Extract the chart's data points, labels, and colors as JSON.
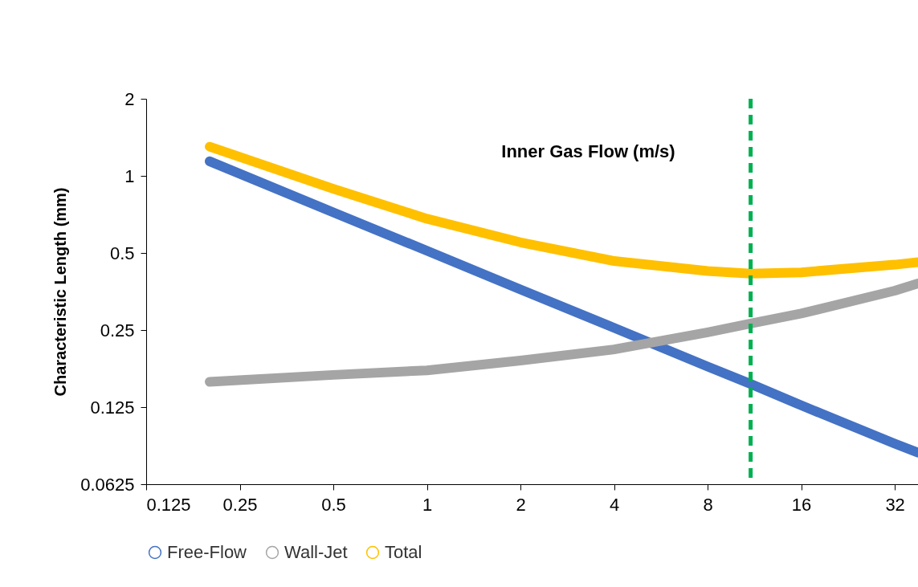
{
  "chart_data": {
    "type": "line",
    "xlabel": "Inner Gas Flow (m/s)",
    "ylabel": "Characteristic Length (mm)",
    "x": [
      0.2,
      0.5,
      1,
      2,
      4,
      8,
      11,
      16,
      32,
      38
    ],
    "series": [
      {
        "name": "Free-Flow",
        "color": "#4472c4",
        "values": [
          1.14,
          0.72,
          0.51,
          0.36,
          0.255,
          0.18,
          0.154,
          0.127,
          0.09,
          0.083
        ]
      },
      {
        "name": "Wall-Jet",
        "color": "#a5a5a5",
        "values": [
          0.157,
          0.167,
          0.174,
          0.19,
          0.21,
          0.245,
          0.265,
          0.29,
          0.356,
          0.38
        ]
      },
      {
        "name": "Total",
        "color": "#ffc000",
        "values": [
          1.3,
          0.89,
          0.68,
          0.55,
          0.465,
          0.425,
          0.415,
          0.42,
          0.45,
          0.46
        ]
      }
    ],
    "log": "xy",
    "xlim": [
      0.125,
      38
    ],
    "xticks": [
      0.125,
      0.25,
      0.5,
      1,
      2,
      4,
      8,
      16,
      32
    ],
    "ylim": [
      0.0625,
      2
    ],
    "yticks": [
      0.0625,
      0.125,
      0.25,
      0.5,
      1,
      2
    ],
    "ref_lines": [
      {
        "axis": "x",
        "value": 11,
        "color": "#00b050",
        "line_style": "dashed"
      }
    ],
    "legend": "bottom",
    "grid": false
  }
}
